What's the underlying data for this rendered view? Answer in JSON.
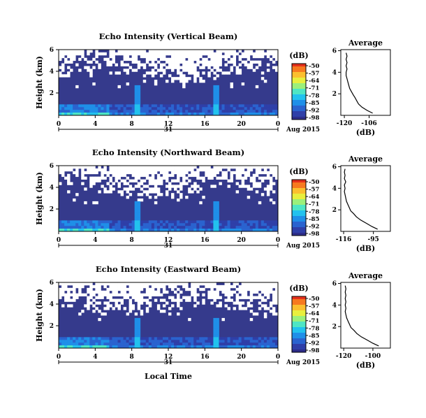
{
  "chart_data": [
    {
      "type": "heatmap",
      "title": "Echo Intensity (Vertical Beam)",
      "ylabel": "Height (km)",
      "yticks": [
        "6",
        "4",
        "2"
      ],
      "xticks": [
        "0",
        "4",
        "8",
        "12",
        "16",
        "20",
        "0"
      ],
      "date_day": "31",
      "date_label": "Aug 2015",
      "colorbar": {
        "unit": "(dB)",
        "ticks": [
          "-50",
          "-57",
          "-64",
          "-71",
          "-78",
          "-85",
          "-92",
          "-98"
        ]
      },
      "profile": {
        "title": "Average",
        "xlabel": "(dB)",
        "xticks": [
          "-120",
          "-106"
        ],
        "yticks": [
          "6",
          "4",
          "2"
        ],
        "x": [
          -104,
          -107,
          -110,
          -112,
          -113,
          -114,
          -115,
          -116,
          -117,
          -117.5,
          -118,
          -118.5,
          -119,
          -119,
          -118.5,
          -119,
          -118.5,
          -119,
          -118.5,
          -119
        ],
        "y": [
          0.2,
          0.45,
          0.75,
          1.05,
          1.35,
          1.65,
          1.9,
          2.2,
          2.5,
          2.8,
          3.1,
          3.4,
          3.7,
          4.0,
          4.3,
          4.6,
          4.9,
          5.2,
          5.5,
          5.8
        ]
      },
      "seed": 11
    },
    {
      "type": "heatmap",
      "title": "Echo Intensity (Northward Beam)",
      "ylabel": "Height (km)",
      "yticks": [
        "6",
        "4",
        "2"
      ],
      "xticks": [
        "0",
        "4",
        "8",
        "12",
        "16",
        "20",
        "0"
      ],
      "date_day": "31",
      "date_label": "Aug 2015",
      "colorbar": {
        "unit": "(dB)",
        "ticks": [
          "-50",
          "-57",
          "-64",
          "-71",
          "-78",
          "-85",
          "-92",
          "-98"
        ]
      },
      "profile": {
        "title": "Average",
        "xlabel": "(dB)",
        "xticks": [
          "-116",
          "-95"
        ],
        "yticks": [
          "6",
          "4",
          "2"
        ],
        "x": [
          -92,
          -96,
          -100,
          -104,
          -107,
          -109,
          -111,
          -112,
          -113,
          -114,
          -114.5,
          -115,
          -115.5,
          -115,
          -115.5,
          -114.5,
          -115.5,
          -115,
          -115.5,
          -115
        ],
        "y": [
          0.2,
          0.45,
          0.75,
          1.05,
          1.35,
          1.65,
          1.9,
          2.2,
          2.5,
          2.8,
          3.1,
          3.4,
          3.7,
          4.0,
          4.3,
          4.6,
          4.9,
          5.2,
          5.5,
          5.8
        ]
      },
      "seed": 23
    },
    {
      "type": "heatmap",
      "title": "Echo Intensity (Eastward Beam)",
      "ylabel": "Height (km)",
      "yticks": [
        "6",
        "4",
        "2"
      ],
      "xticks": [
        "0",
        "4",
        "8",
        "12",
        "16",
        "20",
        "0"
      ],
      "date_day": "31",
      "date_label": "Aug 2015",
      "xlabel": "Local Time",
      "colorbar": {
        "unit": "(dB)",
        "ticks": [
          "-50",
          "-57",
          "-64",
          "-71",
          "-78",
          "-85",
          "-92",
          "-98"
        ]
      },
      "profile": {
        "title": "Average",
        "xlabel": "(dB)",
        "xticks": [
          "-120",
          "-100"
        ],
        "yticks": [
          "6",
          "4",
          "2"
        ],
        "x": [
          -96,
          -100,
          -104,
          -108,
          -111,
          -113,
          -115,
          -116,
          -117,
          -118,
          -118.5,
          -119,
          -118.5,
          -119,
          -118.5,
          -119,
          -118.5,
          -119,
          -118.5,
          -119
        ],
        "y": [
          0.2,
          0.45,
          0.75,
          1.05,
          1.35,
          1.65,
          1.9,
          2.2,
          2.5,
          2.8,
          3.1,
          3.4,
          3.7,
          4.0,
          4.3,
          4.6,
          4.9,
          5.2,
          5.5,
          5.8
        ]
      },
      "seed": 37
    }
  ]
}
